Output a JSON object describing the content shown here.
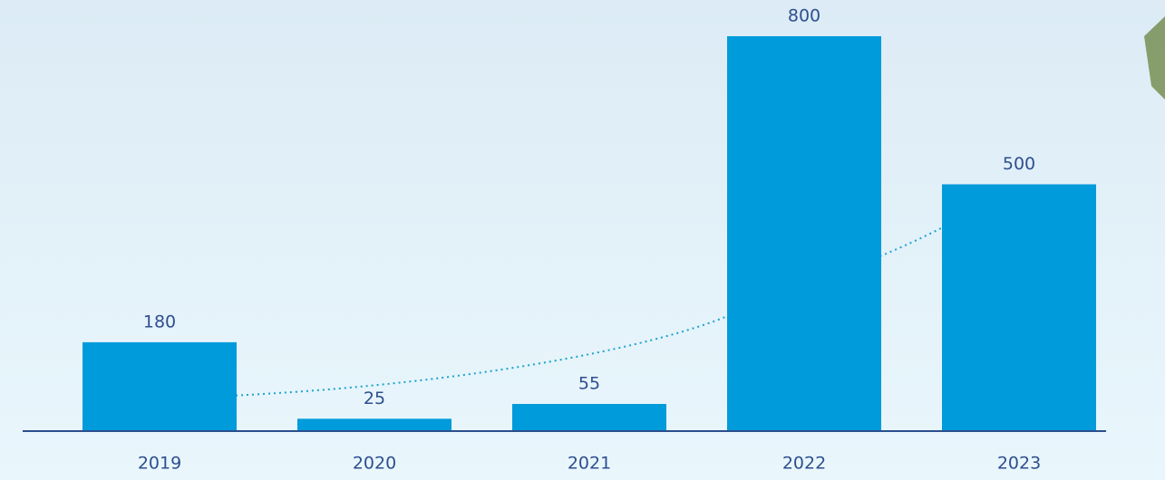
{
  "chart_data": {
    "type": "bar",
    "categories": [
      "2019",
      "2020",
      "2021",
      "2022",
      "2023"
    ],
    "values": [
      180,
      25,
      55,
      800,
      500
    ],
    "color": "#009bdb"
  }
}
